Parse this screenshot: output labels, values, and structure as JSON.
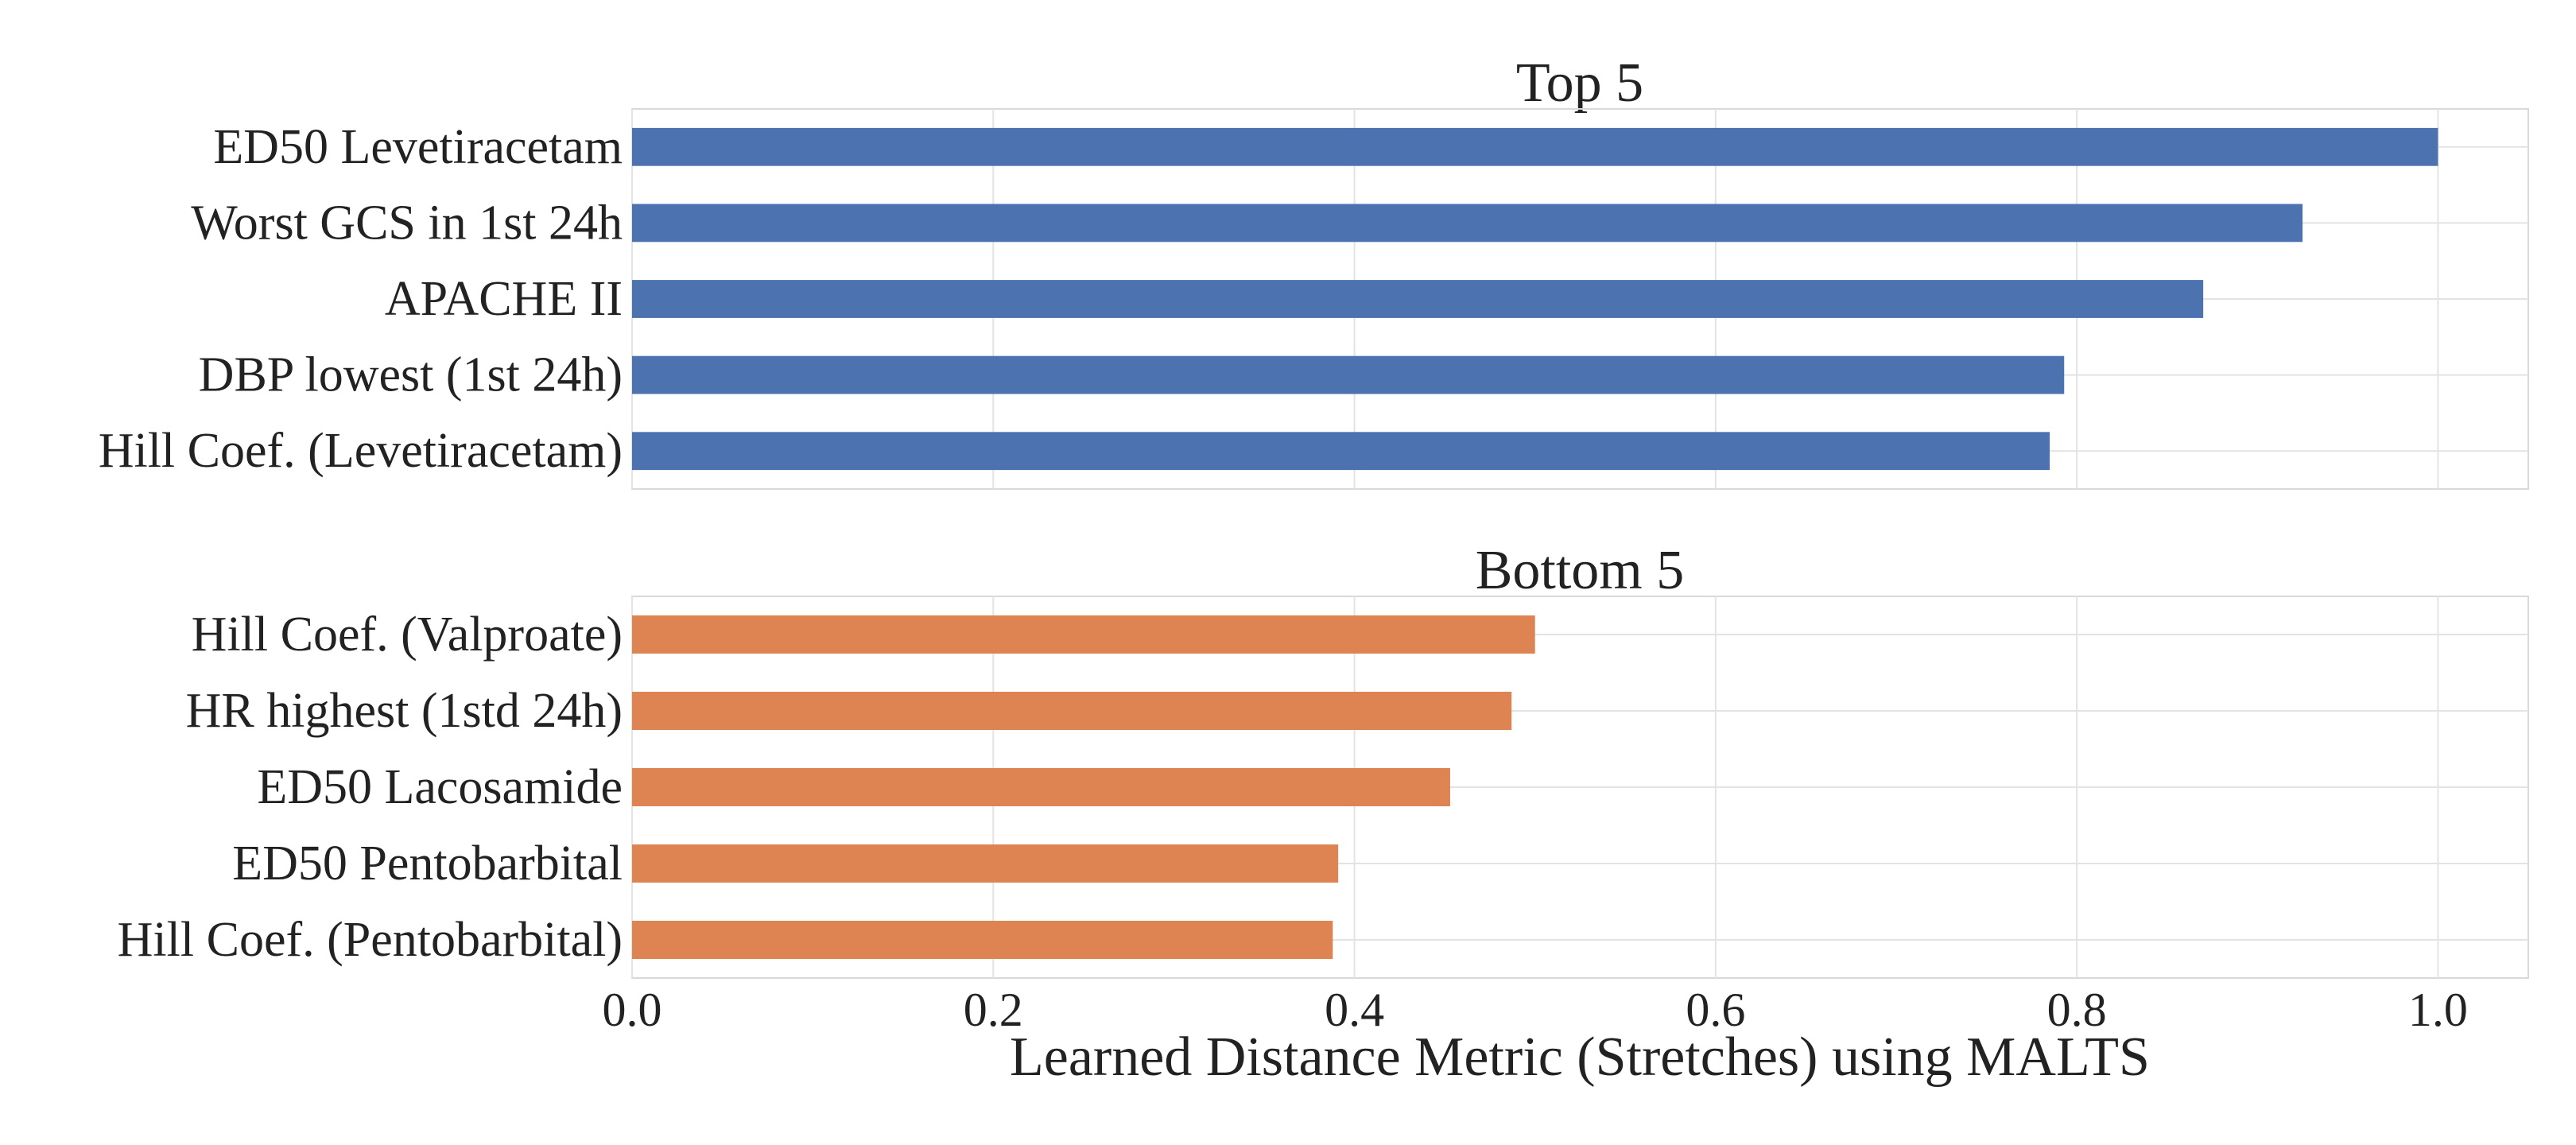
{
  "chart_data": {
    "type": "bar",
    "orientation": "horizontal",
    "xlabel": "Learned Distance Metric (Stretches) using MALTS",
    "xlim": [
      0.0,
      1.05
    ],
    "xticks": [
      "0.0",
      "0.2",
      "0.4",
      "0.6",
      "0.8",
      "1.0"
    ],
    "grid": true,
    "panels": [
      {
        "title": "Top 5",
        "color": "#4c72b0",
        "categories": [
          "ED50 Levetiracetam",
          "Worst GCS in 1st 24h",
          "APACHE II",
          "DBP lowest (1st 24h)",
          "Hill Coef. (Levetiracetam)"
        ],
        "values": [
          1.0,
          0.925,
          0.87,
          0.793,
          0.785
        ]
      },
      {
        "title": "Bottom 5",
        "color": "#dd8452",
        "categories": [
          "Hill Coef. (Valproate)",
          "HR highest (1std 24h)",
          "ED50 Lacosamide",
          "ED50 Pentobarbital",
          "Hill Coef. (Pentobarbital)"
        ],
        "values": [
          0.5,
          0.487,
          0.453,
          0.391,
          0.388
        ]
      }
    ]
  }
}
